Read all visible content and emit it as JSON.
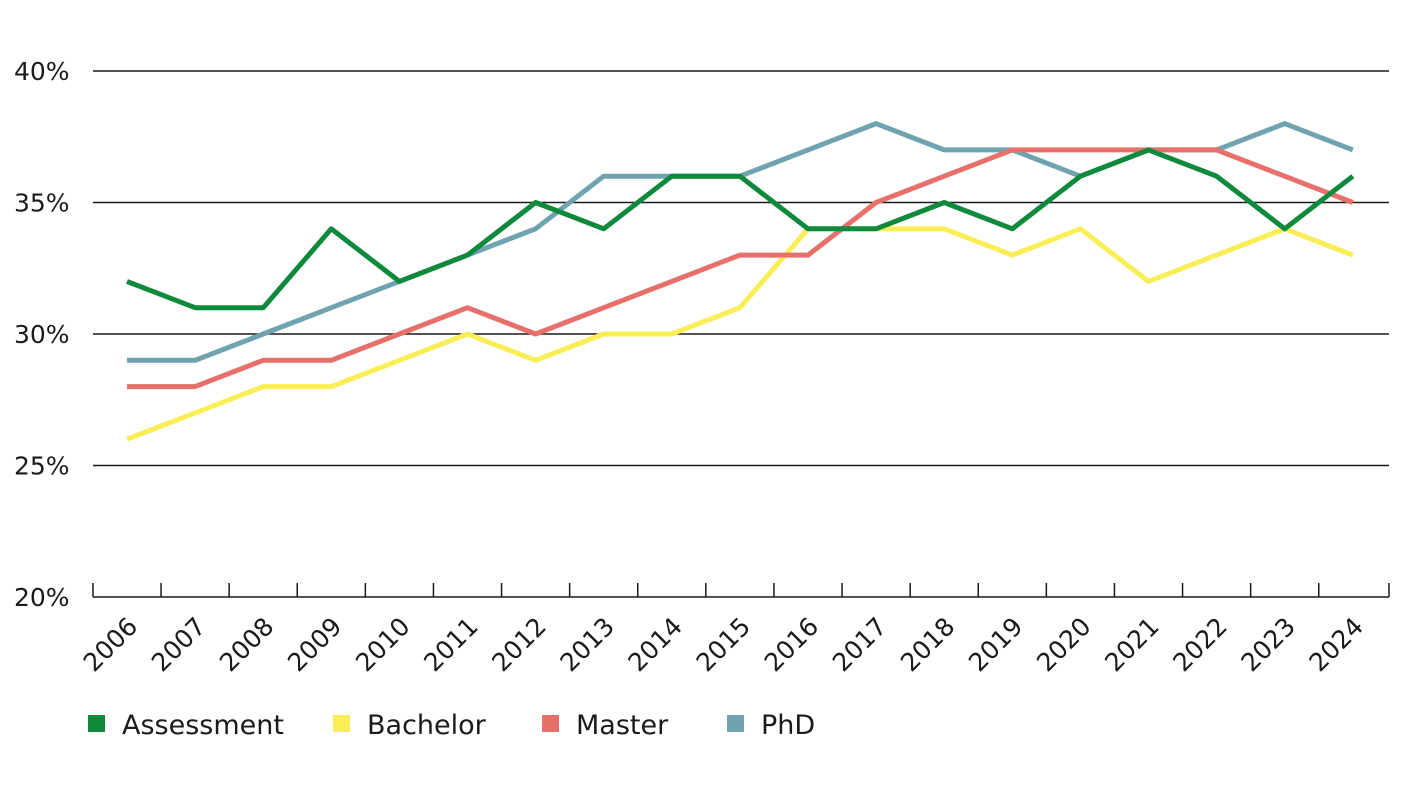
{
  "chart_data": {
    "type": "line",
    "title": "",
    "xlabel": "",
    "ylabel": "",
    "ylim": [
      20,
      40
    ],
    "yticks": [
      20,
      25,
      30,
      35,
      40
    ],
    "ytick_labels": [
      "20%",
      "25%",
      "30%",
      "35%",
      "40%"
    ],
    "grid": true,
    "legend_position": "bottom-left",
    "categories": [
      "2006",
      "2007",
      "2008",
      "2009",
      "2010",
      "2011",
      "2012",
      "2013",
      "2014",
      "2015",
      "2016",
      "2017",
      "2018",
      "2019",
      "2020",
      "2021",
      "2022",
      "2023",
      "2024"
    ],
    "series": [
      {
        "name": "PhD",
        "color": "#6fa3b0",
        "values": [
          29,
          29,
          30,
          31,
          32,
          33,
          34,
          36,
          36,
          36,
          37,
          38,
          37,
          37,
          36,
          37,
          37,
          38,
          37
        ]
      },
      {
        "name": "Bachelor",
        "color": "#f9ee55",
        "values": [
          26,
          27,
          28,
          28,
          29,
          30,
          29,
          30,
          30,
          31,
          34,
          34,
          34,
          33,
          34,
          32,
          33,
          34,
          33
        ]
      },
      {
        "name": "Master",
        "color": "#e8706a",
        "values": [
          28,
          28,
          29,
          29,
          30,
          31,
          30,
          31,
          32,
          33,
          33,
          35,
          36,
          37,
          37,
          37,
          37,
          36,
          35
        ]
      },
      {
        "name": "Assessment",
        "color": "#0f8a3c",
        "values": [
          32,
          31,
          31,
          34,
          32,
          33,
          35,
          34,
          36,
          36,
          34,
          34,
          35,
          34,
          36,
          37,
          36,
          34,
          36
        ]
      }
    ],
    "legend": [
      {
        "label": "Assessment",
        "color": "#0f8a3c"
      },
      {
        "label": "Bachelor",
        "color": "#f9ee55"
      },
      {
        "label": "Master",
        "color": "#e8706a"
      },
      {
        "label": "PhD",
        "color": "#6fa3b0"
      }
    ]
  }
}
